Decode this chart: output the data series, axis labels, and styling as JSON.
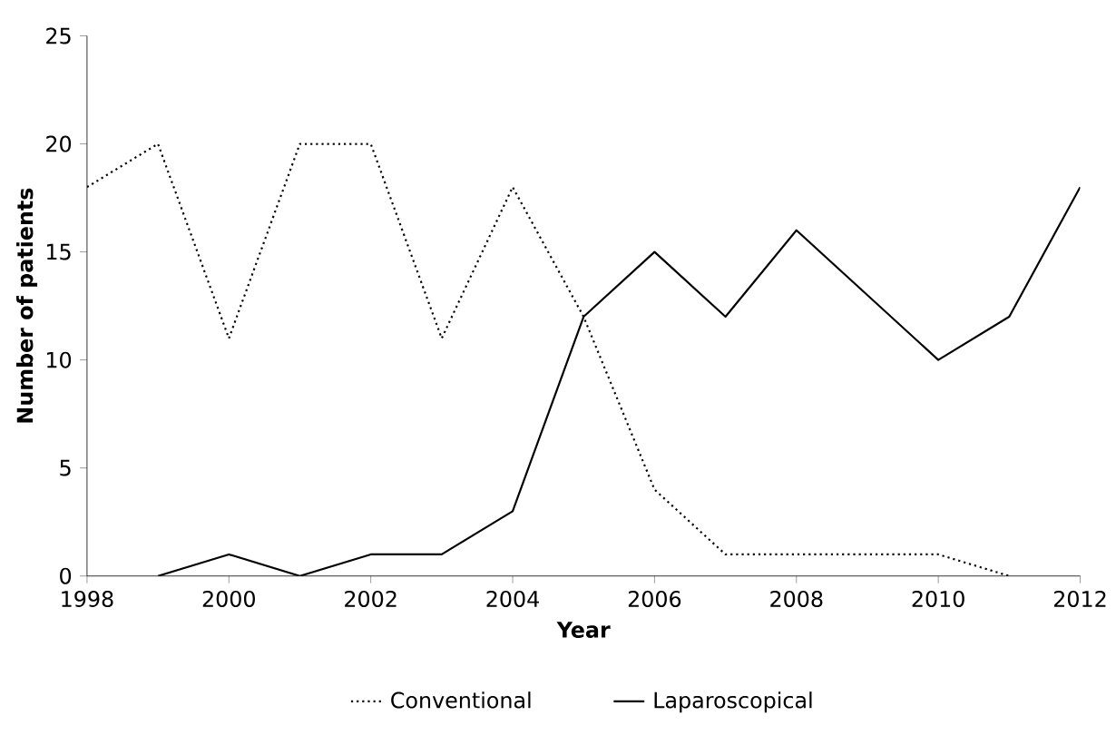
{
  "chart_data": {
    "type": "line",
    "xlabel": "Year",
    "ylabel": "Number of patients",
    "xlim": [
      1998,
      2012
    ],
    "xticks": [
      1998,
      2000,
      2002,
      2004,
      2006,
      2008,
      2010,
      2012
    ],
    "ylim": [
      0,
      25
    ],
    "yticks": [
      0,
      5,
      10,
      15,
      20,
      25
    ],
    "legend": "bottom",
    "series": [
      {
        "name": "Conventional",
        "color": "#000000",
        "line_style": "dotted",
        "x": [
          1998,
          1999,
          2000,
          2001,
          2002,
          2003,
          2004,
          2005,
          2006,
          2007,
          2008,
          2009,
          2010,
          2011
        ],
        "values": [
          18,
          20,
          11,
          20,
          20,
          11,
          18,
          12,
          4,
          1,
          1,
          1,
          1,
          0
        ]
      },
      {
        "name": "Laparoscopical",
        "color": "#000000",
        "line_style": "solid",
        "x": [
          1999,
          2000,
          2001,
          2002,
          2003,
          2004,
          2005,
          2006,
          2007,
          2008,
          2009,
          2010,
          2011,
          2012
        ],
        "values": [
          0,
          1,
          0,
          1,
          1,
          3,
          12,
          15,
          12,
          16,
          13,
          10,
          12,
          18
        ]
      }
    ]
  }
}
